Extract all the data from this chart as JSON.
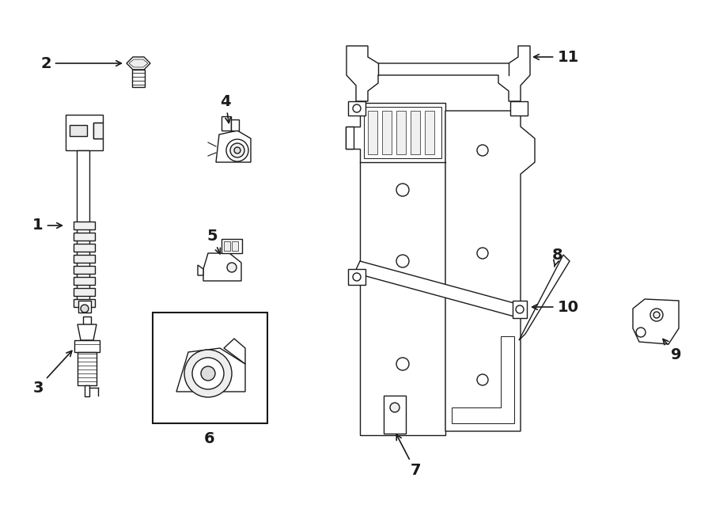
{
  "bg_color": "#ffffff",
  "line_color": "#1a1a1a",
  "lw": 1.0,
  "figsize": [
    9.0,
    6.61
  ],
  "dpi": 100
}
